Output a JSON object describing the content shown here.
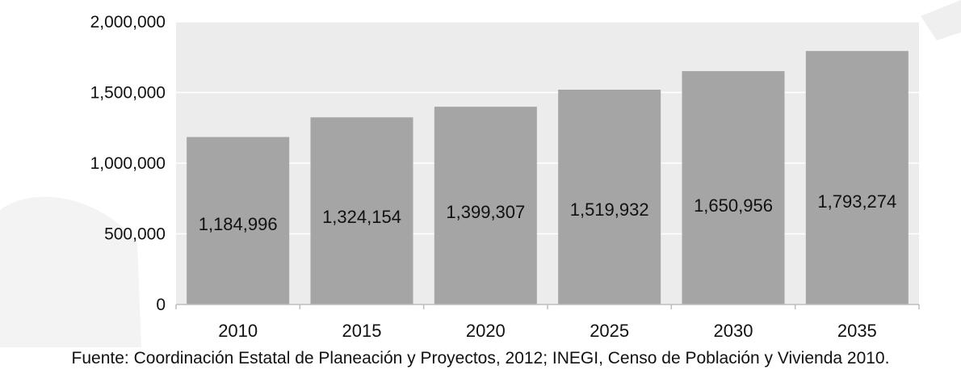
{
  "chart_data": {
    "type": "bar",
    "categories": [
      "2010",
      "2015",
      "2020",
      "2025",
      "2030",
      "2035"
    ],
    "values": [
      1184996,
      1324154,
      1399307,
      1519932,
      1650956,
      1793274
    ],
    "data_labels": [
      "1,184,996",
      "1,324,154",
      "1,399,307",
      "1,519,932",
      "1,650,956",
      "1,793,274"
    ],
    "y_ticks": [
      "0",
      "500,000",
      "1,000,000",
      "1,500,000",
      "2,000,000"
    ],
    "y_tick_values": [
      0,
      500000,
      1000000,
      1500000,
      2000000
    ],
    "ylim": [
      0,
      2000000
    ],
    "title": "",
    "xlabel": "",
    "ylabel": "",
    "grid": true,
    "colors": {
      "bar": "#a5a5a5",
      "plot_background": "#ececec",
      "gridline": "#ffffff",
      "axis": "#bdbdbd",
      "watermark": "#f2f2f2"
    }
  },
  "source_note": "Fuente: Coordinación Estatal de Planeación y Proyectos, 2012; INEGI, Censo de Población y Vivienda 2010."
}
